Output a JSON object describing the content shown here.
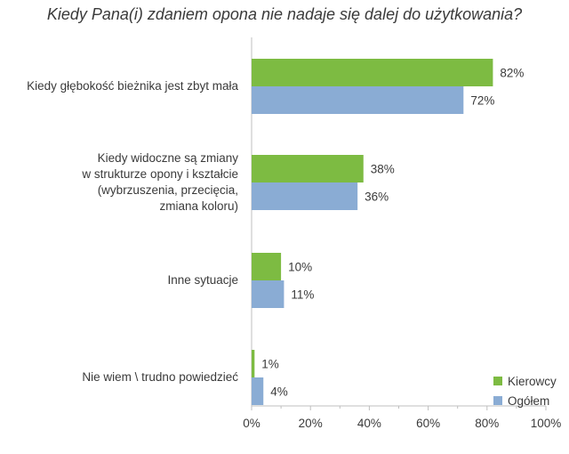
{
  "title": "Kiedy Pana(i) zdaniem opona nie nadaje się dalej do użytkowania?",
  "chart_data": {
    "type": "bar",
    "orientation": "horizontal",
    "categories": [
      "Kiedy głębokość bieżnika jest zbyt mała",
      "Kiedy widoczne są zmiany\nw strukturze opony i kształcie\n(wybrzuszenia, przecięcia,\nzmiana koloru)",
      "Inne sytuacje",
      "Nie wiem \\ trudno powiedzieć"
    ],
    "series": [
      {
        "name": "Kierowcy",
        "color": "#7dbb42",
        "values": [
          82,
          38,
          10,
          1
        ]
      },
      {
        "name": "Ogółem",
        "color": "#8aacd4",
        "values": [
          72,
          36,
          11,
          4
        ]
      }
    ],
    "value_suffix": "%",
    "xlim": [
      0,
      100
    ],
    "x_ticks": [
      "0%",
      "20%",
      "40%",
      "60%",
      "80%",
      "100%"
    ],
    "grid": false,
    "legend_position": "bottom-right"
  }
}
